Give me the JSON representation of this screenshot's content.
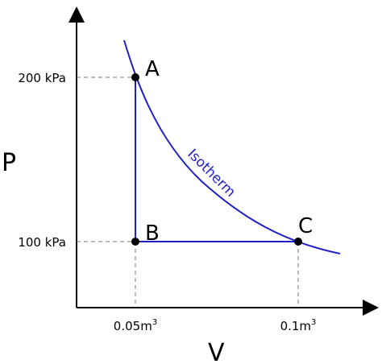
{
  "axes": {
    "x_label": "V",
    "y_label": "P",
    "x_ticks": [
      {
        "base": "0.05m",
        "sup": "3"
      },
      {
        "base": "0.1m",
        "sup": "3"
      }
    ],
    "y_ticks": [
      "200 kPa",
      "100 kPa"
    ]
  },
  "points": {
    "a": "A",
    "b": "B",
    "c": "C"
  },
  "curve_label": "Isotherm",
  "colors": {
    "process": "#1f1fc8",
    "axis": "#000000",
    "guide": "#777777"
  }
}
